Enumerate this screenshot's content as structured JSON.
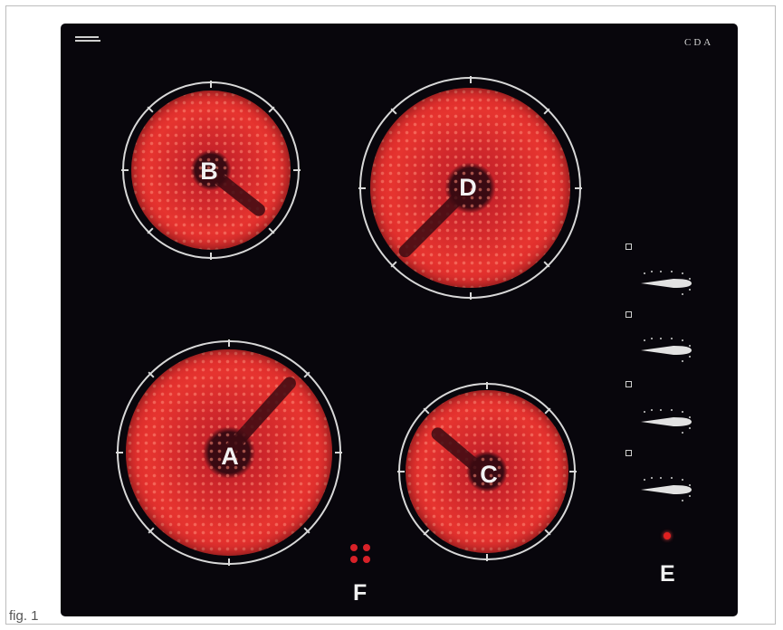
{
  "zones": {
    "a": {
      "label": "A"
    },
    "b": {
      "label": "B"
    },
    "c": {
      "label": "C"
    },
    "d": {
      "label": "D"
    }
  },
  "labels": {
    "controls": "E",
    "touch_panel": "F"
  },
  "brand": "CDA",
  "figure_caption": "fig. 1",
  "colors": {
    "hob_glass": "#08060c",
    "element_red": "#e6342f",
    "ring": "#d8d8d8",
    "indicator_light": "#e02020"
  },
  "icons": {
    "knob": "cooker-control-knob-icon",
    "indicator": "zone-indicator-icon",
    "power": "power-light-icon",
    "touch": "touch-control-icon"
  }
}
